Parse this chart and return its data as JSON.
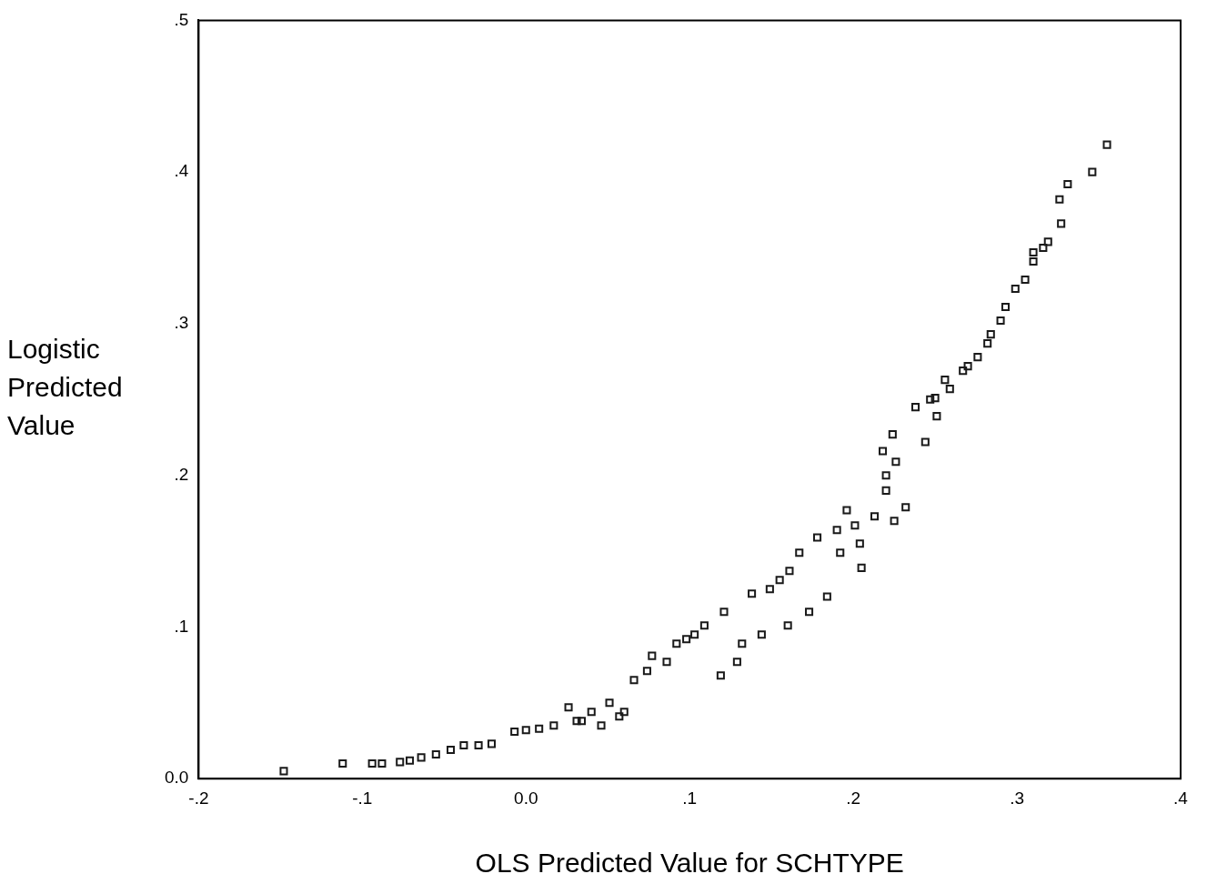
{
  "chart_data": {
    "type": "scatter",
    "xlabel": "OLS Predicted Value for SCHTYPE",
    "ylabel": "Logistic Predicted Value",
    "x": [
      -0.148,
      -0.112,
      -0.094,
      -0.088,
      -0.077,
      -0.071,
      -0.064,
      -0.055,
      -0.046,
      -0.038,
      -0.029,
      -0.021,
      -0.007,
      0.0,
      0.008,
      0.017,
      0.026,
      0.031,
      0.034,
      0.04,
      0.046,
      0.051,
      0.057,
      0.06,
      0.066,
      0.074,
      0.077,
      0.086,
      0.092,
      0.098,
      0.103,
      0.109,
      0.119,
      0.121,
      0.129,
      0.132,
      0.138,
      0.144,
      0.149,
      0.155,
      0.16,
      0.161,
      0.167,
      0.173,
      0.178,
      0.184,
      0.19,
      0.192,
      0.196,
      0.201,
      0.204,
      0.205,
      0.213,
      0.218,
      0.22,
      0.22,
      0.224,
      0.225,
      0.226,
      0.232,
      0.238,
      0.244,
      0.247,
      0.25,
      0.251,
      0.256,
      0.259,
      0.267,
      0.27,
      0.276,
      0.282,
      0.284,
      0.29,
      0.293,
      0.299,
      0.305,
      0.31,
      0.31,
      0.316,
      0.319,
      0.326,
      0.327,
      0.331,
      0.346,
      0.355
    ],
    "values": [
      0.005,
      0.01,
      0.01,
      0.01,
      0.011,
      0.012,
      0.014,
      0.016,
      0.019,
      0.022,
      0.022,
      0.023,
      0.031,
      0.032,
      0.033,
      0.035,
      0.047,
      0.038,
      0.038,
      0.044,
      0.035,
      0.05,
      0.041,
      0.044,
      0.065,
      0.071,
      0.081,
      0.077,
      0.089,
      0.092,
      0.095,
      0.101,
      0.068,
      0.11,
      0.077,
      0.089,
      0.122,
      0.095,
      0.125,
      0.131,
      0.101,
      0.137,
      0.149,
      0.11,
      0.159,
      0.12,
      0.164,
      0.149,
      0.177,
      0.167,
      0.155,
      0.139,
      0.173,
      0.216,
      0.2,
      0.19,
      0.227,
      0.17,
      0.209,
      0.179,
      0.245,
      0.222,
      0.25,
      0.251,
      0.239,
      0.263,
      0.257,
      0.269,
      0.272,
      0.278,
      0.287,
      0.293,
      0.302,
      0.311,
      0.323,
      0.329,
      0.347,
      0.341,
      0.35,
      0.354,
      0.382,
      0.366,
      0.392,
      0.4,
      0.418
    ],
    "color": "#1a1a1a",
    "marker": "square",
    "grid": false,
    "legend": false,
    "xlim": [
      -0.2,
      0.4
    ],
    "xticks": [
      {
        "value": -0.2,
        "label": "-.2"
      },
      {
        "value": -0.1,
        "label": "-.1"
      },
      {
        "value": 0,
        "label": "0.0"
      },
      {
        "value": 0.1,
        "label": ".1"
      },
      {
        "value": 0.2,
        "label": ".2"
      },
      {
        "value": 0.3,
        "label": ".3"
      },
      {
        "value": 0.4,
        "label": ".4"
      }
    ],
    "ylim": [
      0,
      0.5
    ],
    "yticks": [
      {
        "value": 0,
        "label": "0.0"
      },
      {
        "value": 0.1,
        "label": ".1"
      },
      {
        "value": 0.2,
        "label": ".2"
      },
      {
        "value": 0.3,
        "label": ".3"
      },
      {
        "value": 0.4,
        "label": ".4"
      },
      {
        "value": 0.5,
        "label": ".5"
      }
    ]
  }
}
